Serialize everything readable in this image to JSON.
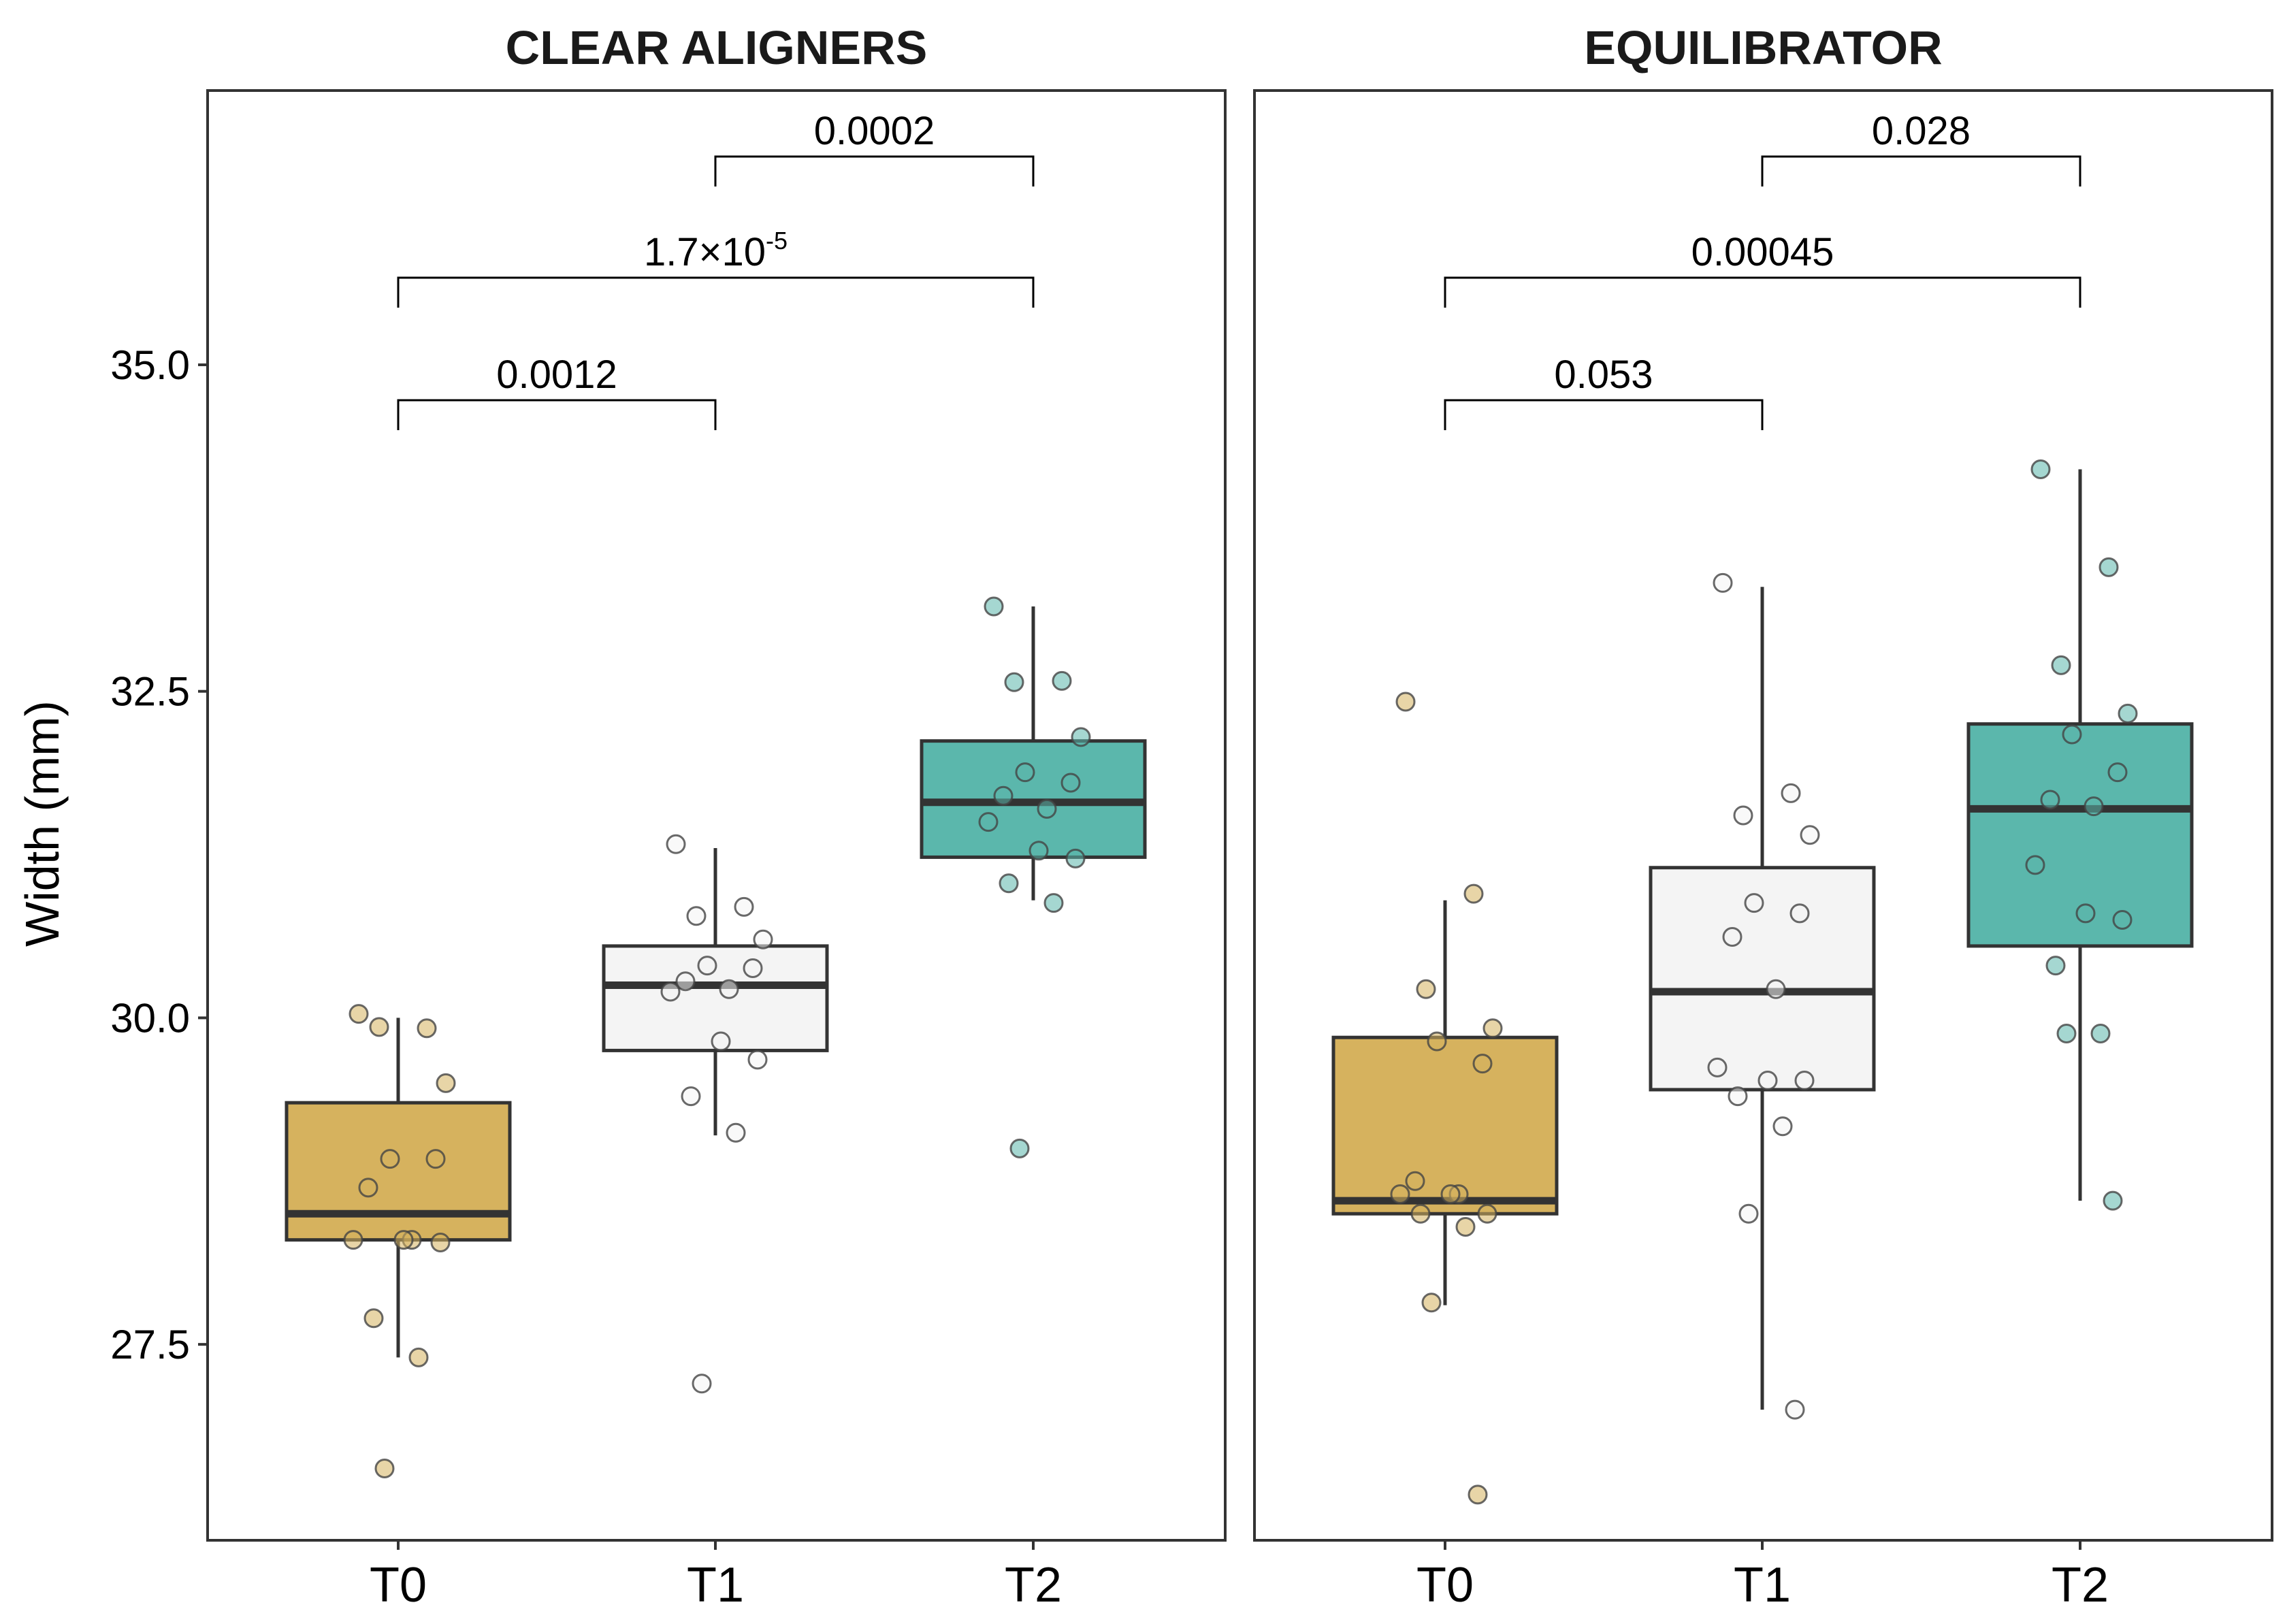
{
  "chart_data": {
    "type": "box",
    "ylabel": "Width (mm)",
    "ylim": [
      26.0,
      37.1
    ],
    "yticks": [
      "27.5",
      "30.0",
      "32.5",
      "35.0"
    ],
    "ytick_values": [
      27.5,
      30.0,
      32.5,
      35.0
    ],
    "categories": [
      "T0",
      "T1",
      "T2"
    ],
    "colors": {
      "T0": "#d6b25e",
      "T1": "#f4f4f4",
      "T2": "#5bb7ac",
      "outline": "#333333"
    },
    "panels": [
      {
        "title": "CLEAR ALIGNERS",
        "boxes": [
          {
            "group": "T0",
            "whisker_low": 27.4,
            "q1": 28.3,
            "median": 28.5,
            "q3": 29.35,
            "whisker_high": 30.0,
            "points": [
              30.03,
              29.92,
              29.93,
              29.5,
              28.92,
              28.92,
              28.7,
              28.3,
              28.3,
              28.3,
              28.28,
              27.7,
              27.4,
              26.55
            ]
          },
          {
            "group": "T1",
            "whisker_low": 29.1,
            "q1": 29.75,
            "median": 30.25,
            "q3": 30.55,
            "whisker_high": 31.3,
            "points": [
              31.33,
              30.85,
              30.78,
              30.6,
              30.4,
              30.38,
              30.28,
              30.22,
              30.2,
              29.82,
              29.68,
              29.4,
              29.12,
              27.2
            ]
          },
          {
            "group": "T2",
            "whisker_low": 30.9,
            "q1": 31.23,
            "median": 31.65,
            "q3": 32.12,
            "whisker_high": 33.15,
            "points": [
              33.15,
              32.58,
              32.57,
              32.15,
              31.88,
              31.8,
              31.7,
              31.6,
              31.5,
              31.28,
              31.22,
              31.03,
              30.88,
              29.0
            ]
          }
        ],
        "brackets": [
          {
            "from": "T0",
            "to": "T1",
            "label": "0.0012"
          },
          {
            "from": "T0",
            "to": "T2",
            "label": "1.7×10",
            "label_sup": "-5"
          },
          {
            "from": "T1",
            "to": "T2",
            "label": "0.0002"
          }
        ]
      },
      {
        "title": "EQUILIBRATOR",
        "boxes": [
          {
            "group": "T0",
            "whisker_low": 27.8,
            "q1": 28.5,
            "median": 28.6,
            "q3": 29.85,
            "whisker_high": 30.9,
            "points": [
              32.42,
              30.95,
              30.22,
              29.92,
              29.82,
              29.65,
              28.75,
              28.65,
              28.65,
              28.65,
              28.5,
              28.5,
              28.4,
              27.82,
              26.35
            ]
          },
          {
            "group": "T1",
            "whisker_low": 27.0,
            "q1": 29.45,
            "median": 30.2,
            "q3": 31.15,
            "whisker_high": 33.3,
            "points": [
              33.33,
              31.72,
              31.55,
              31.4,
              30.88,
              30.8,
              30.62,
              30.22,
              29.62,
              29.52,
              29.52,
              29.4,
              29.17,
              28.5,
              27.0
            ]
          },
          {
            "group": "T2",
            "whisker_low": 28.6,
            "q1": 30.55,
            "median": 31.6,
            "q3": 32.25,
            "whisker_high": 34.2,
            "points": [
              34.2,
              33.45,
              32.7,
              32.33,
              32.17,
              31.88,
              31.67,
              31.62,
              31.17,
              30.8,
              30.75,
              30.4,
              29.88,
              29.88,
              28.6
            ]
          }
        ],
        "brackets": [
          {
            "from": "T0",
            "to": "T1",
            "label": "0.053"
          },
          {
            "from": "T0",
            "to": "T2",
            "label": "0.00045"
          },
          {
            "from": "T1",
            "to": "T2",
            "label": "0.028"
          }
        ]
      }
    ]
  }
}
